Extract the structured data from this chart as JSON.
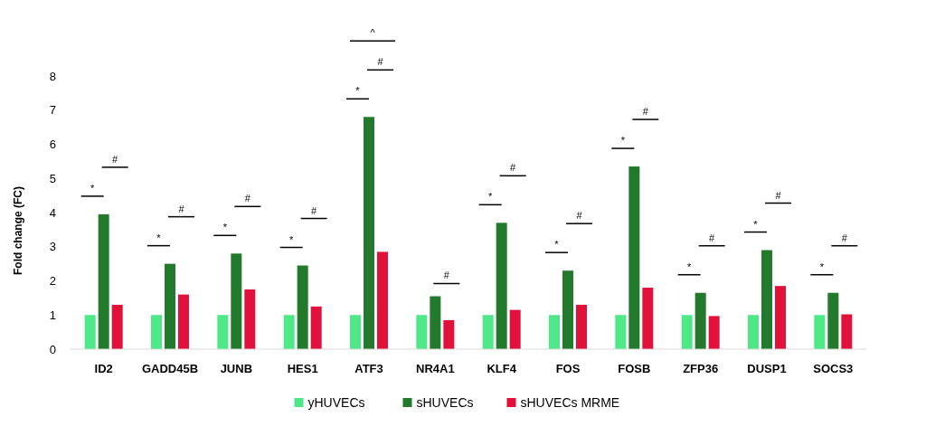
{
  "chart_data": {
    "type": "bar",
    "ylabel": "Fold change (FC)",
    "categories": [
      "ID2",
      "GADD45B",
      "JUNB",
      "HES1",
      "ATF3",
      "NR4A1",
      "KLF4",
      "FOS",
      "FOSB",
      "ZFP36",
      "DUSP1",
      "SOCS3"
    ],
    "series": [
      {
        "name": "yHUVECs",
        "color": "#4ee888",
        "values": [
          1,
          1,
          1,
          1,
          1,
          1,
          1,
          1,
          1,
          1,
          1,
          1
        ]
      },
      {
        "name": "sHUVECs",
        "color": "#237a2c",
        "values": [
          3.95,
          2.5,
          2.8,
          2.45,
          6.8,
          1.55,
          3.7,
          2.3,
          5.35,
          1.65,
          2.9,
          1.65
        ]
      },
      {
        "name": "sHUVECs MRME",
        "color": "#e0113b",
        "values": [
          1.3,
          1.6,
          1.75,
          1.25,
          2.85,
          0.85,
          1.15,
          1.3,
          1.8,
          0.97,
          1.85,
          1.02
        ]
      }
    ],
    "ylim": [
      0,
      8
    ],
    "yticks": [
      0,
      1,
      2,
      3,
      4,
      5,
      6,
      7,
      8
    ],
    "legend": "bottom",
    "annotations": [
      "*",
      "#",
      "*",
      "#",
      "*",
      "#",
      "*",
      "#",
      "*",
      "#",
      "^",
      "#",
      "*",
      "#",
      "*",
      "#",
      "*",
      "#",
      "*",
      "#",
      "*",
      "#",
      "*",
      "#"
    ]
  }
}
